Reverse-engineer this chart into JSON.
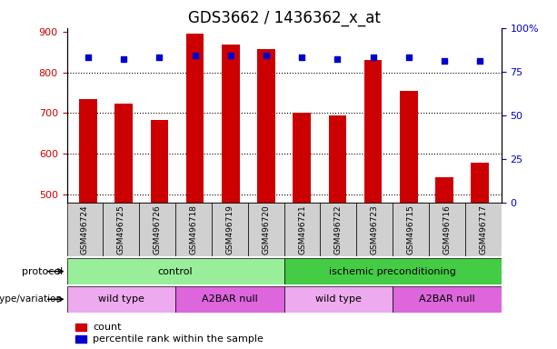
{
  "title": "GDS3662 / 1436362_x_at",
  "samples": [
    "GSM496724",
    "GSM496725",
    "GSM496726",
    "GSM496718",
    "GSM496719",
    "GSM496720",
    "GSM496721",
    "GSM496722",
    "GSM496723",
    "GSM496715",
    "GSM496716",
    "GSM496717"
  ],
  "counts": [
    735,
    723,
    683,
    897,
    868,
    857,
    700,
    695,
    830,
    755,
    543,
    578
  ],
  "percentile_ranks": [
    83,
    82,
    83,
    84,
    84,
    84,
    83,
    82,
    83,
    83,
    81,
    81
  ],
  "ylim_left": [
    480,
    910
  ],
  "ylim_right": [
    0,
    100
  ],
  "yticks_left": [
    500,
    600,
    700,
    800,
    900
  ],
  "yticks_right": [
    0,
    25,
    50,
    75,
    100
  ],
  "bar_color": "#cc0000",
  "dot_color": "#0000cc",
  "bar_width": 0.5,
  "protocol_groups": [
    {
      "label": "control",
      "start": 0,
      "end": 5,
      "color": "#99ee99"
    },
    {
      "label": "ischemic preconditioning",
      "start": 6,
      "end": 11,
      "color": "#44cc44"
    }
  ],
  "genotype_groups": [
    {
      "label": "wild type",
      "start": 0,
      "end": 2,
      "color": "#eeaaee"
    },
    {
      "label": "A2BAR null",
      "start": 3,
      "end": 5,
      "color": "#dd66dd"
    },
    {
      "label": "wild type",
      "start": 6,
      "end": 8,
      "color": "#eeaaee"
    },
    {
      "label": "A2BAR null",
      "start": 9,
      "end": 11,
      "color": "#dd66dd"
    }
  ],
  "protocol_label": "protocol",
  "genotype_label": "genotype/variation",
  "legend_count": "count",
  "legend_percentile": "percentile rank within the sample",
  "background_color": "#ffffff",
  "grid_color": "#000000",
  "tick_label_color_left": "#cc0000",
  "tick_label_color_right": "#0000cc",
  "title_fontsize": 12,
  "axis_fontsize": 9,
  "label_fontsize": 9
}
